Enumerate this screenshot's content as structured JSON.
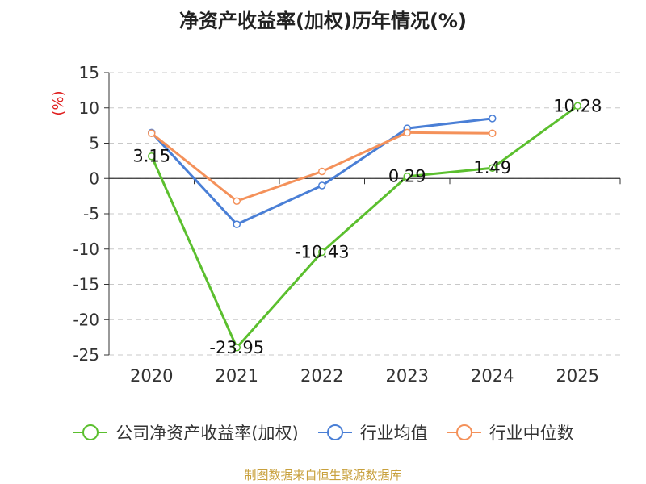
{
  "chart_data": {
    "type": "line",
    "title": "净资产收益率(加权)历年情况(%)",
    "ylabel": "(%)",
    "xlabel": "",
    "categories": [
      "2020",
      "2021",
      "2022",
      "2023",
      "2024",
      "2025"
    ],
    "ylim": [
      -25,
      15
    ],
    "yticks": [
      15,
      10,
      5,
      0,
      -5,
      -10,
      -15,
      -20,
      -25
    ],
    "grid": true,
    "legend_position": "bottom",
    "series": [
      {
        "name": "公司净资产收益率(加权)",
        "color": "#5bbf2e",
        "values": [
          3.15,
          -23.95,
          -10.43,
          0.29,
          1.49,
          10.28
        ],
        "labels": [
          "3.15",
          "-23.95",
          "-10.43",
          "0.29",
          "1.49",
          "10.28"
        ]
      },
      {
        "name": "行业均值",
        "color": "#4a7fd6",
        "values": [
          6.5,
          -6.5,
          -1.0,
          7.1,
          8.5,
          null
        ]
      },
      {
        "name": "行业中位数",
        "color": "#f4915a",
        "values": [
          6.4,
          -3.2,
          1.0,
          6.5,
          6.4,
          null
        ]
      }
    ]
  },
  "source": "制图数据来自恒生聚源数据库"
}
